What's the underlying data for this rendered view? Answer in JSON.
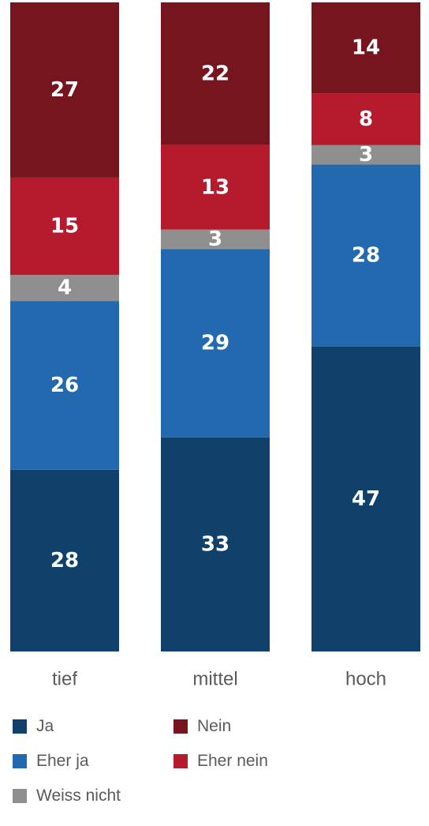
{
  "chart_data": {
    "type": "bar",
    "stacked": true,
    "orientation": "vertical",
    "categories": [
      "tief",
      "mittel",
      "hoch"
    ],
    "series": [
      {
        "name": "Ja",
        "color": "#0f416b",
        "values": [
          28,
          33,
          47
        ]
      },
      {
        "name": "Eher ja",
        "color": "#2269b0",
        "values": [
          26,
          29,
          28
        ]
      },
      {
        "name": "Weiss nicht",
        "color": "#8f8f8f",
        "values": [
          4,
          3,
          3
        ]
      },
      {
        "name": "Eher nein",
        "color": "#b51b2c",
        "values": [
          15,
          13,
          8
        ]
      },
      {
        "name": "Nein",
        "color": "#76151d",
        "values": [
          27,
          22,
          14
        ]
      }
    ],
    "legend": [
      {
        "name": "Ja",
        "color": "#0f416b"
      },
      {
        "name": "Nein",
        "color": "#76151d"
      },
      {
        "name": "Eher ja",
        "color": "#2269b0"
      },
      {
        "name": "Eher nein",
        "color": "#b51b2c"
      },
      {
        "name": "Weiss nicht",
        "color": "#8f8f8f"
      }
    ],
    "legend_position": "bottom",
    "ylim": [
      0,
      100
    ],
    "grid": false,
    "data_label_color": "#ffffff",
    "category_label_color": "#5a5a5a",
    "title": "",
    "xlabel": "",
    "ylabel": ""
  }
}
